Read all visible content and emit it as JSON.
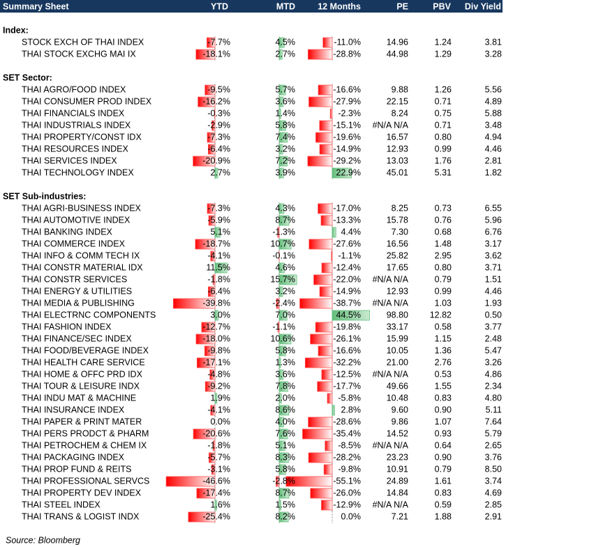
{
  "header": {
    "title": "Summary Sheet",
    "columns": [
      "YTD",
      "MTD",
      "12 Months",
      "PE",
      "PBV",
      "Div Yield"
    ]
  },
  "sections": [
    {
      "title": "Index:",
      "rows": [
        [
          "STOCK EXCH OF THAI INDEX",
          "-7.7%",
          "4.5%",
          "-11.0%",
          "14.96",
          "1.24",
          "3.81"
        ],
        [
          "THAI STOCK EXCHG MAI IX",
          "-18.1%",
          "2.7%",
          "-28.8%",
          "44.98",
          "1.29",
          "3.28"
        ]
      ]
    },
    {
      "title": "SET Sector:",
      "rows": [
        [
          "THAI AGRO/FOOD INDEX",
          "-9.5%",
          "5.7%",
          "-16.6%",
          "9.88",
          "1.26",
          "5.56"
        ],
        [
          "THAI CONSUMER PROD INDEX",
          "-16.2%",
          "3.6%",
          "-27.9%",
          "22.15",
          "0.71",
          "4.89"
        ],
        [
          "THAI FINANCIALS INDEX",
          "-0.3%",
          "1.4%",
          "-2.3%",
          "8.24",
          "0.75",
          "5.88"
        ],
        [
          "THAI INDUSTRIALS INDEX",
          "-2.9%",
          "5.8%",
          "-15.1%",
          "#N/A N/A",
          "0.71",
          "3.48"
        ],
        [
          "THAI PROPERTY/CONST IDX",
          "-7.3%",
          "7.4%",
          "-19.6%",
          "16.57",
          "0.80",
          "4.94"
        ],
        [
          "THAI RESOURCES INDEX",
          "-6.4%",
          "3.2%",
          "-14.9%",
          "12.93",
          "0.99",
          "4.46"
        ],
        [
          "THAI SERVICES INDEX",
          "-20.9%",
          "7.2%",
          "-29.2%",
          "13.03",
          "1.76",
          "2.81"
        ],
        [
          "THAI TECHNOLOGY INDEX",
          "2.7%",
          "3.9%",
          "22.9%",
          "45.01",
          "5.31",
          "1.82"
        ]
      ]
    },
    {
      "title": "SET Sub-industries:",
      "rows": [
        [
          "THAI AGRI-BUSINESS INDEX",
          "-7.3%",
          "4.3%",
          "-17.0%",
          "8.25",
          "0.73",
          "6.55"
        ],
        [
          "THAI AUTOMOTIVE INDEX",
          "-5.9%",
          "8.7%",
          "-13.3%",
          "15.78",
          "0.76",
          "5.96"
        ],
        [
          "THAI BANKING INDEX",
          "5.1%",
          "-1.3%",
          "4.4%",
          "7.30",
          "0.68",
          "6.76"
        ],
        [
          "THAI COMMERCE INDEX",
          "-18.7%",
          "10.7%",
          "-27.6%",
          "16.56",
          "1.48",
          "3.17"
        ],
        [
          "THAI INFO & COMM TECH IX",
          "-4.1%",
          "-0.1%",
          "-1.1%",
          "25.82",
          "2.95",
          "3.62"
        ],
        [
          "THAI CONSTR MATERIAL IDX",
          "11.5%",
          "4.6%",
          "-12.4%",
          "17.65",
          "0.80",
          "3.71"
        ],
        [
          "THAI CONSTR SERVICES",
          "-1.8%",
          "15.7%",
          "-22.0%",
          "#N/A N/A",
          "0.79",
          "1.51"
        ],
        [
          "THAI ENERGY & UTILITIES",
          "-6.4%",
          "3.2%",
          "-14.9%",
          "12.93",
          "0.99",
          "4.46"
        ],
        [
          "THAI MEDIA & PUBLISHING",
          "-39.8%",
          "-2.4%",
          "-38.7%",
          "#N/A N/A",
          "1.03",
          "1.93"
        ],
        [
          "THAI ELECTRNC COMPONENTS",
          "3.0%",
          "7.0%",
          "44.5%",
          "98.80",
          "12.82",
          "0.50"
        ],
        [
          "THAI FASHION INDEX",
          "-12.7%",
          "-1.1%",
          "-19.8%",
          "33.17",
          "0.58",
          "3.77"
        ],
        [
          "THAI FINANCE/SEC INDEX",
          "-18.0%",
          "10.6%",
          "-26.1%",
          "15.99",
          "1.15",
          "2.48"
        ],
        [
          "THAI FOOD/BEVERAGE INDEX",
          "-9.8%",
          "5.8%",
          "-16.6%",
          "10.05",
          "1.36",
          "5.47"
        ],
        [
          "THAI HEALTH CARE SERVICE",
          "-17.1%",
          "1.3%",
          "-32.2%",
          "21.00",
          "2.76",
          "3.26"
        ],
        [
          "THAI HOME & OFFC PRD IDX",
          "-4.8%",
          "3.6%",
          "-12.5%",
          "#N/A N/A",
          "0.53",
          "4.86"
        ],
        [
          "THAI TOUR & LEISURE INDX",
          "-9.2%",
          "7.8%",
          "-17.7%",
          "49.66",
          "1.55",
          "2.34"
        ],
        [
          "THAI INDU MAT & MACHINE",
          "1.9%",
          "2.0%",
          "-5.8%",
          "10.48",
          "0.83",
          "4.80"
        ],
        [
          "THAI INSURANCE INDEX",
          "-4.1%",
          "8.6%",
          "2.8%",
          "9.60",
          "0.90",
          "5.11"
        ],
        [
          "THAI PAPER & PRINT MATER",
          "0.0%",
          "4.0%",
          "-28.6%",
          "9.86",
          "1.07",
          "7.64"
        ],
        [
          "THAI PERS PRODCT & PHARM",
          "-20.6%",
          "7.6%",
          "-35.4%",
          "14.52",
          "0.93",
          "5.79"
        ],
        [
          "THAI PETROCHEM & CHEM IX",
          "-1.8%",
          "5.1%",
          "-8.5%",
          "#N/A N/A",
          "0.64",
          "2.65"
        ],
        [
          "THAI PACKAGING INDEX",
          "-5.7%",
          "8.3%",
          "-28.2%",
          "23.23",
          "0.90",
          "3.76"
        ],
        [
          "THAI PROP FUND & REITS",
          "-3.1%",
          "5.8%",
          "-9.8%",
          "10.91",
          "0.79",
          "8.50"
        ],
        [
          "THAI PROFESSIONAL SERVCS",
          "-46.6%",
          "-2.8%",
          "-55.1%",
          "24.89",
          "1.61",
          "3.74"
        ],
        [
          "THAI PROPERTY DEV INDEX",
          "-17.4%",
          "8.7%",
          "-26.0%",
          "14.84",
          "0.83",
          "4.69"
        ],
        [
          "THAI STEEL INDEX",
          "1.6%",
          "1.5%",
          "-12.9%",
          "#N/A N/A",
          "0.59",
          "2.85"
        ],
        [
          "THAI TRANS & LOGIST INDX",
          "-25.4%",
          "8.2%",
          "0.0%",
          "7.21",
          "1.88",
          "2.91"
        ]
      ]
    }
  ],
  "source": "Source: Bloomberg"
}
